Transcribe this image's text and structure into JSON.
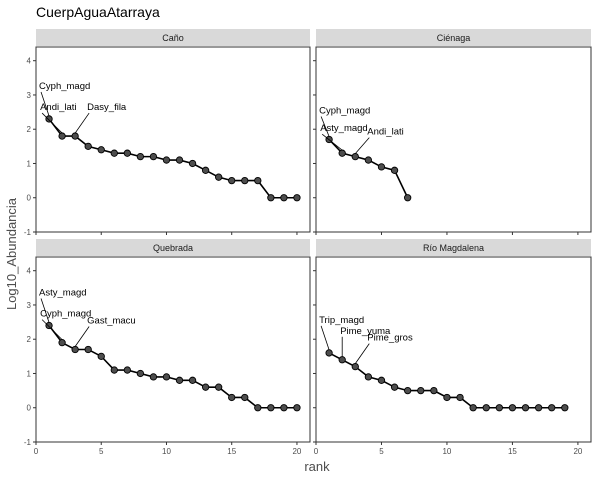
{
  "chart_data": {
    "type": "line",
    "title": "CuerpAguaAtarraya",
    "xlabel": "rank",
    "ylabel": "Log10_Abundancia",
    "xlim": [
      0,
      21
    ],
    "ylim": [
      -1,
      4.4
    ],
    "x_ticks": [
      0,
      5,
      10,
      15,
      20
    ],
    "y_ticks": [
      -1,
      0,
      1,
      2,
      3,
      4
    ],
    "grid": false,
    "colors": {
      "strip_bg": "#d9d9d9",
      "point_fill": "#4d4d4d",
      "line": "#000000"
    },
    "panels": [
      {
        "name": "Caño",
        "x": [
          1,
          2,
          3,
          4,
          5,
          6,
          7,
          8,
          9,
          10,
          11,
          12,
          13,
          14,
          15,
          16,
          17,
          18,
          19,
          20
        ],
        "y": [
          2.3,
          1.8,
          1.8,
          1.5,
          1.4,
          1.3,
          1.3,
          1.2,
          1.2,
          1.1,
          1.1,
          1.0,
          0.8,
          0.6,
          0.5,
          0.5,
          0.5,
          0,
          0,
          0
        ],
        "annotations": [
          {
            "label": "Cyph_magd",
            "rank": 1
          },
          {
            "label": "Andi_lati",
            "rank": 2
          },
          {
            "label": "Dasy_fila",
            "rank": 3
          }
        ]
      },
      {
        "name": "Ciénaga",
        "x": [
          1,
          2,
          3,
          4,
          5,
          6,
          7
        ],
        "y": [
          1.7,
          1.3,
          1.2,
          1.1,
          0.9,
          0.8,
          0
        ],
        "annotations": [
          {
            "label": "Cyph_magd",
            "rank": 1
          },
          {
            "label": "Asty_magd",
            "rank": 2
          },
          {
            "label": "Andi_lati",
            "rank": 3
          }
        ]
      },
      {
        "name": "Quebrada",
        "x": [
          1,
          2,
          3,
          4,
          5,
          6,
          7,
          8,
          9,
          10,
          11,
          12,
          13,
          14,
          15,
          16,
          17,
          18,
          19,
          20
        ],
        "y": [
          2.4,
          1.9,
          1.7,
          1.7,
          1.5,
          1.1,
          1.1,
          1.0,
          0.9,
          0.9,
          0.8,
          0.8,
          0.6,
          0.6,
          0.3,
          0.3,
          0,
          0,
          0,
          0
        ],
        "annotations": [
          {
            "label": "Asty_magd",
            "rank": 1
          },
          {
            "label": "Cyph_magd",
            "rank": 2
          },
          {
            "label": "Gast_macu",
            "rank": 3
          }
        ]
      },
      {
        "name": "Río Magdalena",
        "x": [
          1,
          2,
          3,
          4,
          5,
          6,
          7,
          8,
          9,
          10,
          11,
          12,
          13,
          14,
          15,
          16,
          17,
          18,
          19
        ],
        "y": [
          1.6,
          1.4,
          1.2,
          0.9,
          0.8,
          0.6,
          0.5,
          0.5,
          0.5,
          0.3,
          0.3,
          0,
          0,
          0,
          0,
          0,
          0,
          0,
          0
        ],
        "annotations": [
          {
            "label": "Trip_magd",
            "rank": 1
          },
          {
            "label": "Pime_yuma",
            "rank": 2
          },
          {
            "label": "Pime_gros",
            "rank": 3
          }
        ]
      }
    ]
  }
}
